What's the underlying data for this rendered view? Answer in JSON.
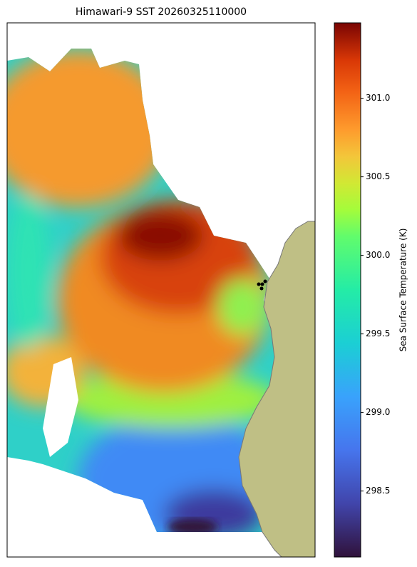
{
  "title": "Himawari-9 SST 20260325110000",
  "colorbar": {
    "label": "Sea Surface Temperature (K)",
    "lim": [
      298.08,
      301.48
    ],
    "ticks": [
      {
        "value": 298.5,
        "label": "298.5"
      },
      {
        "value": 299,
        "label": "299.0"
      },
      {
        "value": 299.5,
        "label": "299.5"
      },
      {
        "value": 300,
        "label": "300.0"
      },
      {
        "value": 300.5,
        "label": "300.5"
      },
      {
        "value": 301,
        "label": "301.0"
      }
    ]
  }
}
